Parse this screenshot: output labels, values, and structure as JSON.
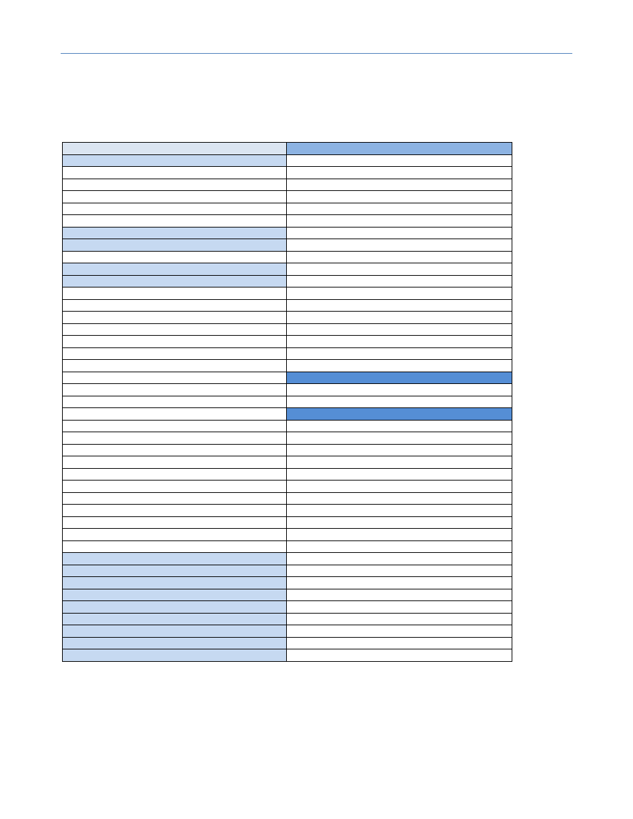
{
  "colors": {
    "header_rule": "#4f81bd",
    "pale_fill": "#dbe5f1",
    "light_fill": "#c6d9f1",
    "mid_fill": "#8db3e2",
    "dark_fill": "#558ed5",
    "border": "#000000"
  },
  "table": {
    "rows": [
      {
        "c1": "",
        "c2": "",
        "f1": "pale",
        "f2": "mid"
      },
      {
        "c1": "",
        "c2": "",
        "f1": "light",
        "f2": "white"
      },
      {
        "c1": "",
        "c2": "",
        "f1": "white",
        "f2": "white"
      },
      {
        "c1": "",
        "c2": "",
        "f1": "white",
        "f2": "white"
      },
      {
        "c1": "",
        "c2": "",
        "f1": "white",
        "f2": "white"
      },
      {
        "c1": "",
        "c2": "",
        "f1": "white",
        "f2": "white"
      },
      {
        "c1": "",
        "c2": "",
        "f1": "white",
        "f2": "white"
      },
      {
        "c1": "",
        "c2": "",
        "f1": "light",
        "f2": "white"
      },
      {
        "c1": "",
        "c2": "",
        "f1": "light",
        "f2": "white"
      },
      {
        "c1": "",
        "c2": "",
        "f1": "white",
        "f2": "white"
      },
      {
        "c1": "",
        "c2": "",
        "f1": "light",
        "f2": "white"
      },
      {
        "c1": "",
        "c2": "",
        "f1": "light",
        "f2": "white"
      },
      {
        "c1": "",
        "c2": "",
        "f1": "white",
        "f2": "white"
      },
      {
        "c1": "",
        "c2": "",
        "f1": "white",
        "f2": "white"
      },
      {
        "c1": "",
        "c2": "",
        "f1": "white",
        "f2": "white"
      },
      {
        "c1": "",
        "c2": "",
        "f1": "white",
        "f2": "white"
      },
      {
        "c1": "",
        "c2": "",
        "f1": "white",
        "f2": "white"
      },
      {
        "c1": "",
        "c2": "",
        "f1": "white",
        "f2": "white"
      },
      {
        "c1": "",
        "c2": "",
        "f1": "white",
        "f2": "white"
      },
      {
        "c1": "",
        "c2": "",
        "f1": "white",
        "f2": "dark"
      },
      {
        "c1": "",
        "c2": "",
        "f1": "white",
        "f2": "white"
      },
      {
        "c1": "",
        "c2": "",
        "f1": "white",
        "f2": "white"
      },
      {
        "c1": "",
        "c2": "",
        "f1": "white",
        "f2": "dark"
      },
      {
        "c1": "",
        "c2": "",
        "f1": "white",
        "f2": "white"
      },
      {
        "c1": "",
        "c2": "",
        "f1": "white",
        "f2": "white"
      },
      {
        "c1": "",
        "c2": "",
        "f1": "white",
        "f2": "white"
      },
      {
        "c1": "",
        "c2": "",
        "f1": "white",
        "f2": "white"
      },
      {
        "c1": "",
        "c2": "",
        "f1": "white",
        "f2": "white"
      },
      {
        "c1": "",
        "c2": "",
        "f1": "white",
        "f2": "white"
      },
      {
        "c1": "",
        "c2": "",
        "f1": "white",
        "f2": "white"
      },
      {
        "c1": "",
        "c2": "",
        "f1": "white",
        "f2": "white"
      },
      {
        "c1": "",
        "c2": "",
        "f1": "white",
        "f2": "white"
      },
      {
        "c1": "",
        "c2": "",
        "f1": "white",
        "f2": "white"
      },
      {
        "c1": "",
        "c2": "",
        "f1": "white",
        "f2": "white"
      },
      {
        "c1": "",
        "c2": "",
        "f1": "light",
        "f2": "white"
      },
      {
        "c1": "",
        "c2": "",
        "f1": "light",
        "f2": "white"
      },
      {
        "c1": "",
        "c2": "",
        "f1": "light",
        "f2": "white"
      },
      {
        "c1": "",
        "c2": "",
        "f1": "light",
        "f2": "white"
      },
      {
        "c1": "",
        "c2": "",
        "f1": "light",
        "f2": "white"
      },
      {
        "c1": "",
        "c2": "",
        "f1": "light",
        "f2": "white"
      },
      {
        "c1": "",
        "c2": "",
        "f1": "light",
        "f2": "white"
      },
      {
        "c1": "",
        "c2": "",
        "f1": "light",
        "f2": "white"
      },
      {
        "c1": "",
        "c2": "",
        "f1": "light",
        "f2": "white"
      }
    ]
  }
}
